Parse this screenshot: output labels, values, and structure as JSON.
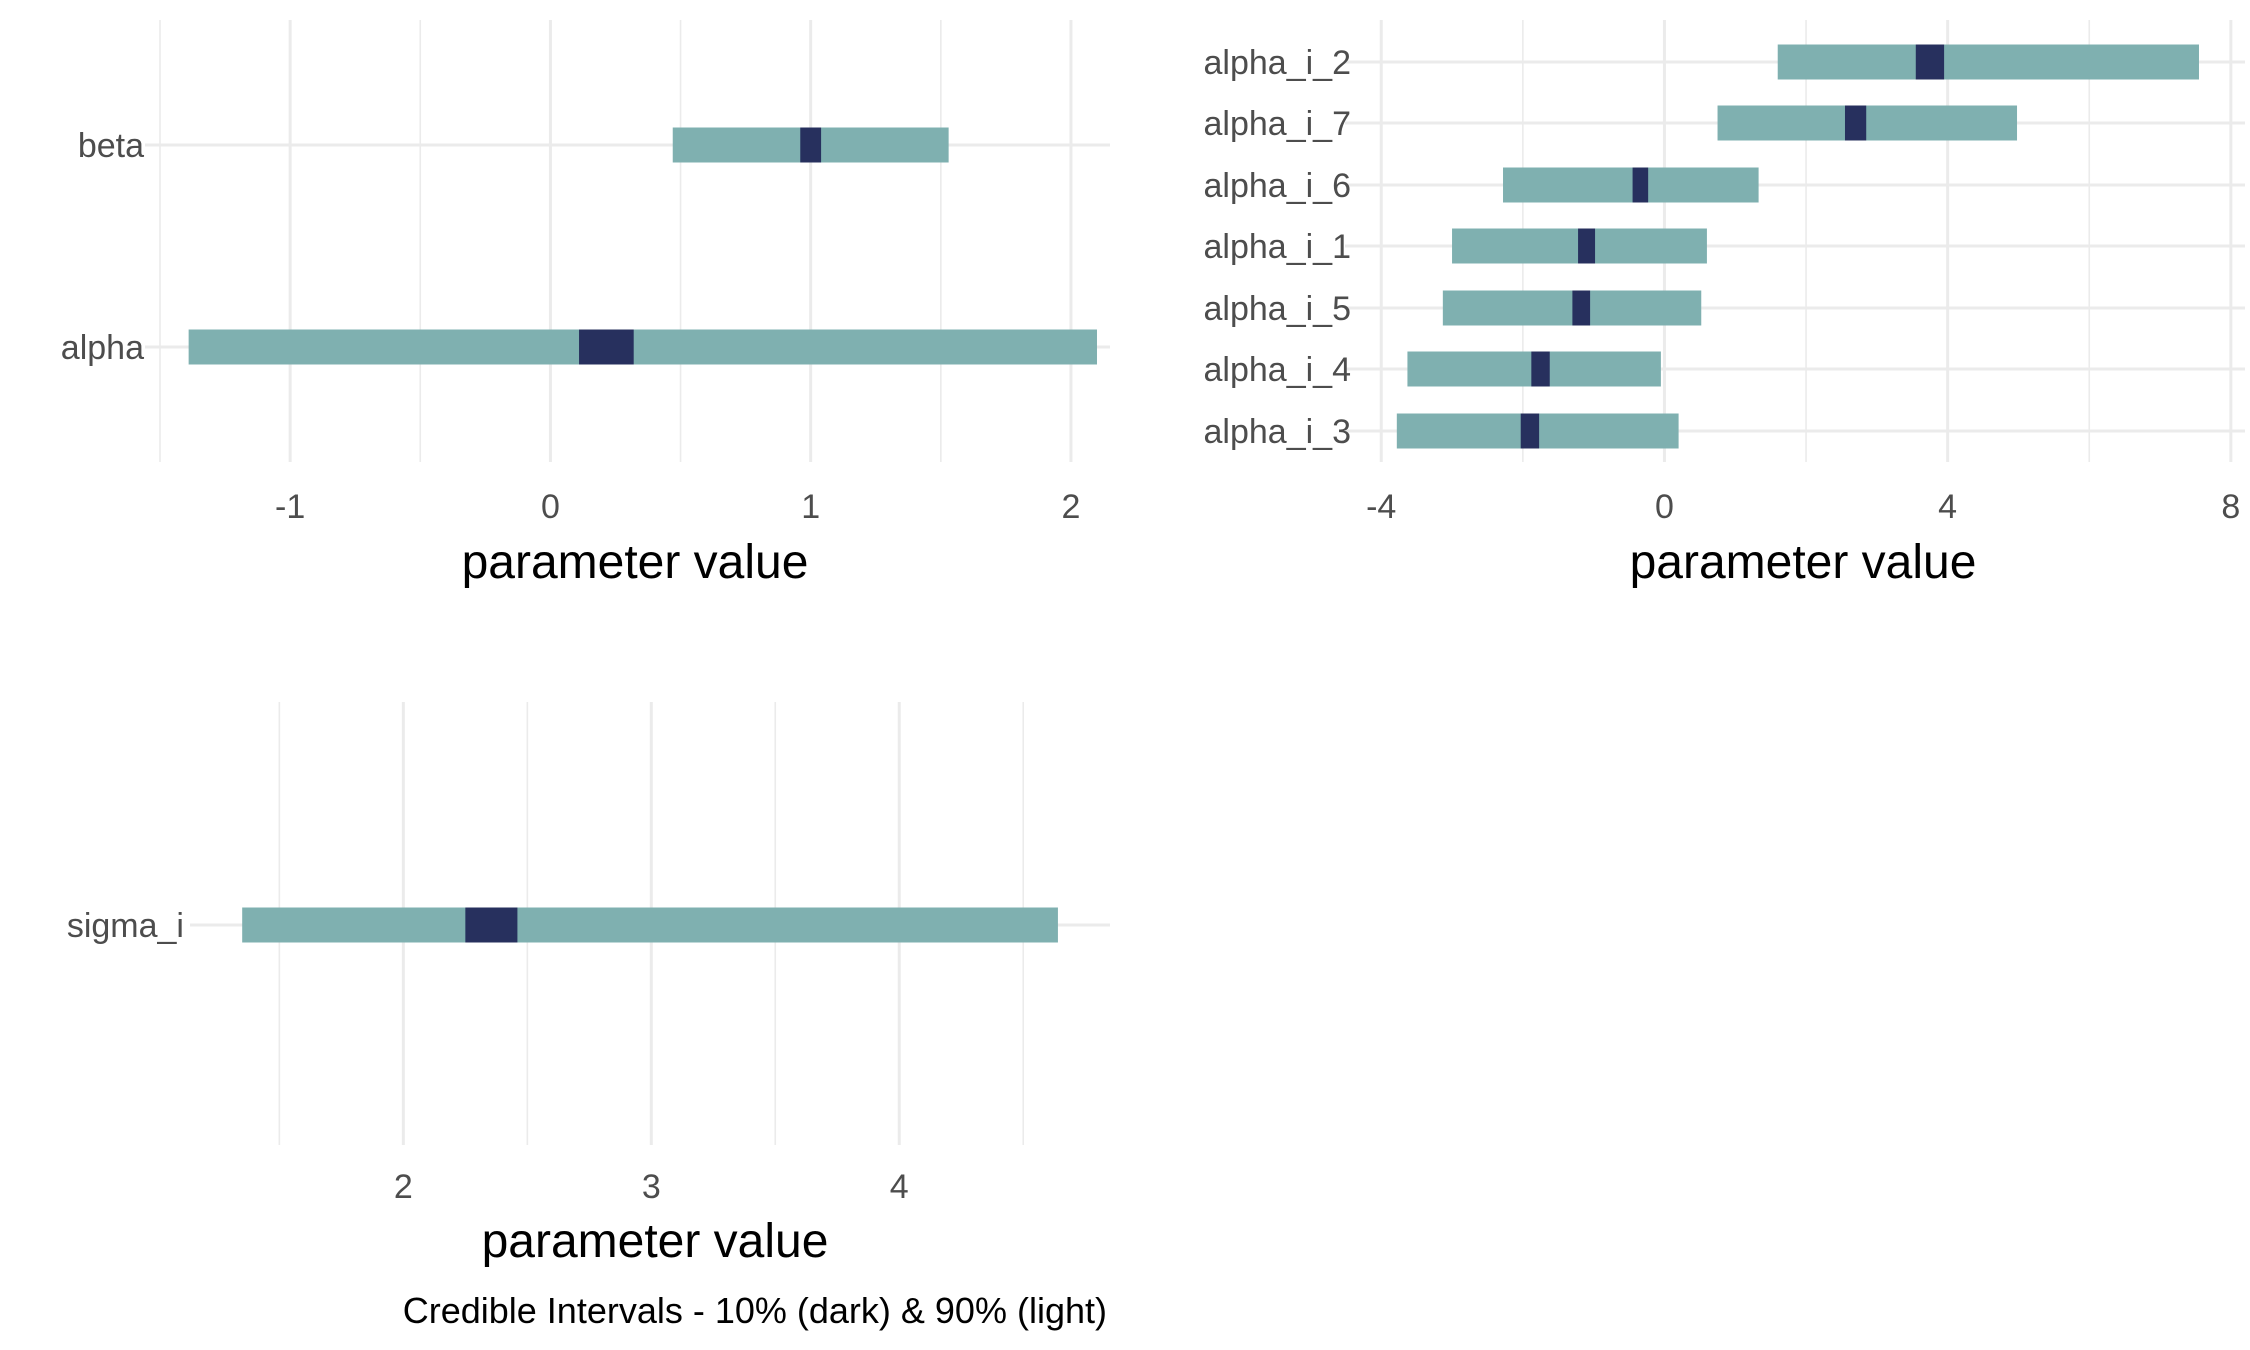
{
  "caption": "Credible Intervals - 10% (dark) & 90% (light)",
  "colors": {
    "outer": "#7fb0b0",
    "inner": "#27305e",
    "grid": "#ebebeb"
  },
  "chart_data": [
    {
      "id": "panel-a",
      "type": "interval",
      "xlabel": "parameter value",
      "xlim": [
        -1.5,
        2.15
      ],
      "xticks": [
        -1,
        0,
        1,
        2
      ],
      "xtick_labels": [
        "-1",
        "0",
        "1",
        "2"
      ],
      "grid": true,
      "rows": [
        {
          "label": "beta",
          "outer": [
            0.47,
            1.53
          ],
          "inner": [
            0.96,
            1.04
          ]
        },
        {
          "label": "alpha",
          "outer": [
            -1.39,
            2.1
          ],
          "inner": [
            0.11,
            0.32
          ]
        }
      ]
    },
    {
      "id": "panel-b",
      "type": "interval",
      "xlabel": "parameter value",
      "xlim": [
        -4.3,
        8.2
      ],
      "xticks": [
        -4,
        0,
        4,
        8
      ],
      "xtick_labels": [
        "-4",
        "0",
        "4",
        "8"
      ],
      "grid": true,
      "rows": [
        {
          "label": "alpha_i_2",
          "outer": [
            1.6,
            7.55
          ],
          "inner": [
            3.55,
            3.95
          ]
        },
        {
          "label": "alpha_i_7",
          "outer": [
            0.75,
            4.98
          ],
          "inner": [
            2.55,
            2.85
          ]
        },
        {
          "label": "alpha_i_6",
          "outer": [
            -2.28,
            1.33
          ],
          "inner": [
            -0.45,
            -0.23
          ]
        },
        {
          "label": "alpha_i_1",
          "outer": [
            -3.0,
            0.6
          ],
          "inner": [
            -1.22,
            -0.98
          ]
        },
        {
          "label": "alpha_i_5",
          "outer": [
            -3.13,
            0.52
          ],
          "inner": [
            -1.3,
            -1.05
          ]
        },
        {
          "label": "alpha_i_4",
          "outer": [
            -3.63,
            -0.05
          ],
          "inner": [
            -1.88,
            -1.62
          ]
        },
        {
          "label": "alpha_i_3",
          "outer": [
            -3.78,
            0.2
          ],
          "inner": [
            -2.03,
            -1.77
          ]
        }
      ]
    },
    {
      "id": "panel-c",
      "type": "interval",
      "xlabel": "parameter value",
      "xlim": [
        1.2,
        4.85
      ],
      "xticks": [
        2,
        3,
        4
      ],
      "xtick_labels": [
        "2",
        "3",
        "4"
      ],
      "grid": true,
      "rows": [
        {
          "label": "sigma_i",
          "outer": [
            1.35,
            4.64
          ],
          "inner": [
            2.25,
            2.46
          ]
        }
      ]
    }
  ]
}
